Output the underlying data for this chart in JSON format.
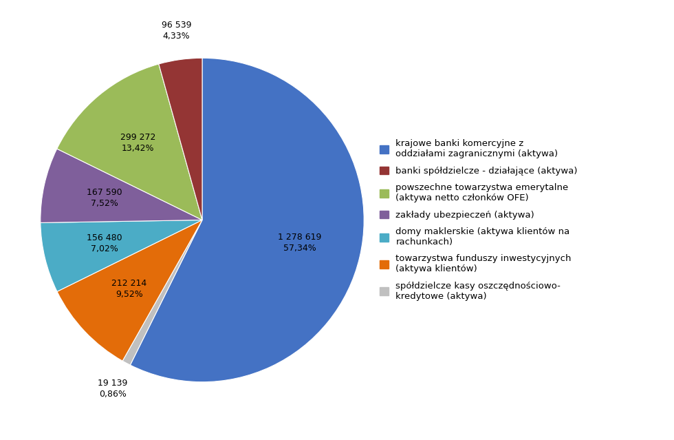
{
  "values": [
    1278619,
    19139,
    212214,
    156480,
    167590,
    299272,
    96539
  ],
  "labels": [
    "krajowe banki komercyjne z\noddziałami zagranicznymi (aktywa)",
    "spółdzielcze kasy oszczędnościowo-\nkredytowe (aktywa)",
    "towarzystwa funduszy inwestycyjnych\n(aktywa klientów)",
    "domy maklerskie (aktywa klientów na\nrachunkach)",
    "zakłady ubezpieczeń (aktywa)",
    "powszechne towarzystwa emerytalne\n(aktywa netto członków OFE)",
    "banki spółdzielcze - działające (aktywa)"
  ],
  "display_labels": [
    "1 278 619\n57,34%",
    "19 139\n0,86%",
    "212 214\n9,52%",
    "156 480\n7,02%",
    "167 590\n7,52%",
    "299 272\n13,42%",
    "96 539\n4,33%"
  ],
  "colors": [
    "#4472C4",
    "#C0C0C0",
    "#E36C09",
    "#4BACC6",
    "#7F5F9B",
    "#9BBB59",
    "#943534"
  ],
  "legend_labels": [
    "krajowe banki komercyjne z\noddziałami zagranicznymi (aktywa)",
    "banki spółdzielcze - działające (aktywa)",
    "powszechne towarzystwa emerytalne\n(aktywa netto członków OFE)",
    "zakłady ubezpieczeń (aktywa)",
    "domy maklerskie (aktywa klientów na\nrachunkach)",
    "towarzystwa funduszy inwestycyjnych\n(aktywa klientów)",
    "spółdzielcze kasy oszczędnościowo-\nkredytowe (aktywa)"
  ],
  "legend_colors": [
    "#4472C4",
    "#943534",
    "#9BBB59",
    "#7F5F9B",
    "#4BACC6",
    "#E36C09",
    "#C0C0C0"
  ],
  "background_color": "#FFFFFF",
  "startangle": 90,
  "figsize": [
    9.8,
    6.39
  ]
}
